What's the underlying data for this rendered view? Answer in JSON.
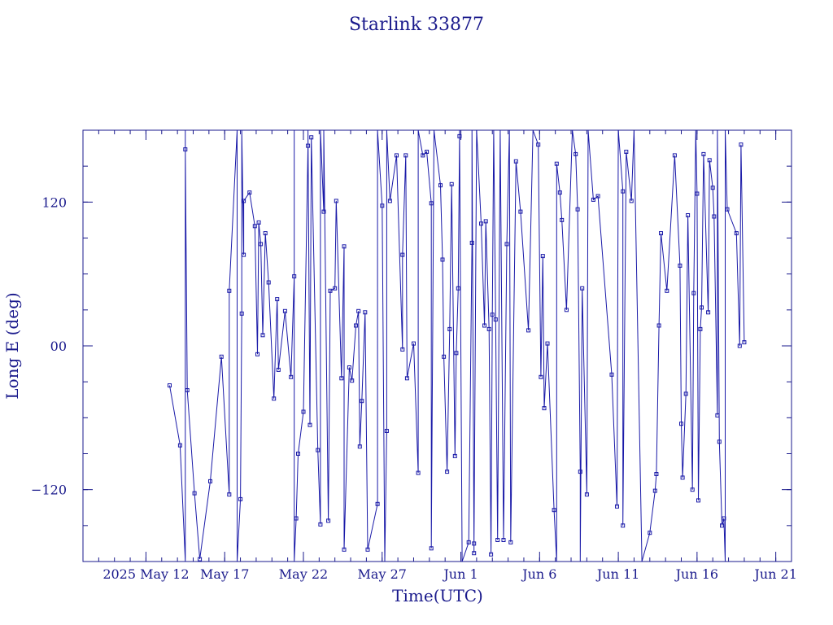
{
  "chart_data": {
    "type": "line",
    "title": "Starlink 33877",
    "xlabel": "Time(UTC)",
    "ylabel": "Long E (deg)",
    "x_ticks": [
      {
        "label": "2025 May 12",
        "date": "2025-05-12"
      },
      {
        "label": "May 17",
        "date": "2025-05-17"
      },
      {
        "label": "May 22",
        "date": "2025-05-22"
      },
      {
        "label": "May 27",
        "date": "2025-05-27"
      },
      {
        "label": "Jun 1",
        "date": "2025-06-01"
      },
      {
        "label": "Jun 6",
        "date": "2025-06-06"
      },
      {
        "label": "Jun 11",
        "date": "2025-06-11"
      },
      {
        "label": "Jun 16",
        "date": "2025-06-16"
      },
      {
        "label": "Jun 21",
        "date": "2025-06-21"
      }
    ],
    "y_ticks": [
      {
        "label": "−120",
        "value": -120
      },
      {
        "label": "00",
        "value": 0
      },
      {
        "label": "120",
        "value": 120
      }
    ],
    "xlim": [
      "2025-05-08",
      "2025-06-22"
    ],
    "ylim": [
      -180,
      180
    ],
    "grid": false,
    "color": "#1a1aa8",
    "series": [
      {
        "points": [
          {
            "x": "2025-05-13 12:00",
            "y": -33
          },
          {
            "x": "2025-05-14 04:00",
            "y": -83
          },
          {
            "x": "2025-05-14 12:00",
            "y": -180
          },
          {
            "x": "2025-05-14 12:00",
            "y": 180
          },
          {
            "x": "2025-05-14 12:00",
            "y": 164
          },
          {
            "x": "2025-05-14 15:00",
            "y": -37
          },
          {
            "x": "2025-05-15 02:00",
            "y": -123
          },
          {
            "x": "2025-05-15 10:00",
            "y": -178
          },
          {
            "x": "2025-05-16 02:00",
            "y": -113
          },
          {
            "x": "2025-05-16 19:00",
            "y": -9
          },
          {
            "x": "2025-05-17 07:00",
            "y": -124
          },
          {
            "x": "2025-05-17 07:00",
            "y": 46
          },
          {
            "x": "2025-05-17 19:00",
            "y": 180
          },
          {
            "x": "2025-05-17 19:00",
            "y": -180
          },
          {
            "x": "2025-05-18 00:00",
            "y": -128
          },
          {
            "x": "2025-05-18 02:00",
            "y": 27
          },
          {
            "x": "2025-05-18 02:00",
            "y": 180
          },
          {
            "x": "2025-05-18 05:00",
            "y": 76
          },
          {
            "x": "2025-05-18 05:00",
            "y": 121
          },
          {
            "x": "2025-05-18 14:00",
            "y": 128
          },
          {
            "x": "2025-05-18 22:00",
            "y": 100
          },
          {
            "x": "2025-05-19 02:00",
            "y": -7
          },
          {
            "x": "2025-05-19 04:00",
            "y": 103
          },
          {
            "x": "2025-05-19 07:00",
            "y": 85
          },
          {
            "x": "2025-05-19 10:00",
            "y": 9
          },
          {
            "x": "2025-05-19 14:00",
            "y": 94
          },
          {
            "x": "2025-05-19 19:00",
            "y": 53
          },
          {
            "x": "2025-05-20 03:00",
            "y": -44
          },
          {
            "x": "2025-05-20 08:00",
            "y": 39
          },
          {
            "x": "2025-05-20 10:00",
            "y": -20
          },
          {
            "x": "2025-05-20 20:00",
            "y": 29
          },
          {
            "x": "2025-05-21 05:00",
            "y": -26
          },
          {
            "x": "2025-05-21 10:00",
            "y": 58
          },
          {
            "x": "2025-05-21 10:00",
            "y": 180
          },
          {
            "x": "2025-05-21 10:00",
            "y": -180
          },
          {
            "x": "2025-05-21 13:00",
            "y": -144
          },
          {
            "x": "2025-05-21 16:00",
            "y": -90
          },
          {
            "x": "2025-05-22 00:00",
            "y": -55
          },
          {
            "x": "2025-05-22 07:00",
            "y": 167
          },
          {
            "x": "2025-05-22 07:00",
            "y": 180
          },
          {
            "x": "2025-05-22 10:00",
            "y": -66
          },
          {
            "x": "2025-05-22 12:00",
            "y": 174
          },
          {
            "x": "2025-05-22 22:00",
            "y": -87
          },
          {
            "x": "2025-05-23 02:00",
            "y": -149
          },
          {
            "x": "2025-05-23 02:00",
            "y": 180
          },
          {
            "x": "2025-05-23 07:00",
            "y": 112
          },
          {
            "x": "2025-05-23 07:00",
            "y": 180
          },
          {
            "x": "2025-05-23 14:00",
            "y": -146
          },
          {
            "x": "2025-05-23 17:00",
            "y": 46
          },
          {
            "x": "2025-05-24 00:00",
            "y": 48
          },
          {
            "x": "2025-05-24 02:00",
            "y": 121
          },
          {
            "x": "2025-05-24 10:00",
            "y": -27
          },
          {
            "x": "2025-05-24 14:00",
            "y": 83
          },
          {
            "x": "2025-05-24 14:00",
            "y": -170
          },
          {
            "x": "2025-05-24 22:00",
            "y": -18
          },
          {
            "x": "2025-05-25 02:00",
            "y": -29
          },
          {
            "x": "2025-05-25 08:00",
            "y": 17
          },
          {
            "x": "2025-05-25 12:00",
            "y": 29
          },
          {
            "x": "2025-05-25 14:00",
            "y": -84
          },
          {
            "x": "2025-05-25 17:00",
            "y": -46
          },
          {
            "x": "2025-05-25 22:00",
            "y": 28
          },
          {
            "x": "2025-05-26 02:00",
            "y": -170
          },
          {
            "x": "2025-05-26 17:00",
            "y": -132
          },
          {
            "x": "2025-05-26 17:00",
            "y": 180
          },
          {
            "x": "2025-05-27 00:00",
            "y": 117
          },
          {
            "x": "2025-05-27 04:00",
            "y": -180
          },
          {
            "x": "2025-05-27 07:00",
            "y": -71
          },
          {
            "x": "2025-05-27 07:00",
            "y": 180
          },
          {
            "x": "2025-05-27 12:00",
            "y": 121
          },
          {
            "x": "2025-05-27 22:00",
            "y": 159
          },
          {
            "x": "2025-05-28 07:00",
            "y": -3
          },
          {
            "x": "2025-05-28 07:00",
            "y": 76
          },
          {
            "x": "2025-05-28 12:00",
            "y": 159
          },
          {
            "x": "2025-05-28 14:00",
            "y": -27
          },
          {
            "x": "2025-05-29 00:00",
            "y": 2
          },
          {
            "x": "2025-05-29 07:00",
            "y": -106
          },
          {
            "x": "2025-05-29 07:00",
            "y": 180
          },
          {
            "x": "2025-05-29 14:00",
            "y": 159
          },
          {
            "x": "2025-05-29 20:00",
            "y": 162
          },
          {
            "x": "2025-05-30 03:00",
            "y": 119
          },
          {
            "x": "2025-05-30 03:00",
            "y": -169
          },
          {
            "x": "2025-05-30 07:00",
            "y": 180
          },
          {
            "x": "2025-05-30 17:00",
            "y": 134
          },
          {
            "x": "2025-05-30 20:00",
            "y": 72
          },
          {
            "x": "2025-05-30 22:00",
            "y": -9
          },
          {
            "x": "2025-05-31 03:00",
            "y": -105
          },
          {
            "x": "2025-05-31 07:00",
            "y": 14
          },
          {
            "x": "2025-05-31 10:00",
            "y": 135
          },
          {
            "x": "2025-05-31 15:00",
            "y": -92
          },
          {
            "x": "2025-05-31 17:00",
            "y": -6
          },
          {
            "x": "2025-05-31 20:00",
            "y": 48
          },
          {
            "x": "2025-05-31 22:00",
            "y": 175
          },
          {
            "x": "2025-05-31 22:00",
            "y": 180
          },
          {
            "x": "2025-06-01 02:00",
            "y": -180
          },
          {
            "x": "2025-06-01 12:00",
            "y": -164
          },
          {
            "x": "2025-06-01 17:00",
            "y": 86
          },
          {
            "x": "2025-06-01 17:00",
            "y": 180
          },
          {
            "x": "2025-06-01 20:00",
            "y": -173
          },
          {
            "x": "2025-06-01 20:00",
            "y": -165
          },
          {
            "x": "2025-06-02 00:00",
            "y": 180
          },
          {
            "x": "2025-06-02 07:00",
            "y": 102
          },
          {
            "x": "2025-06-02 12:00",
            "y": 17
          },
          {
            "x": "2025-06-02 14:00",
            "y": 104
          },
          {
            "x": "2025-06-02 19:00",
            "y": 14
          },
          {
            "x": "2025-06-02 22:00",
            "y": -174
          },
          {
            "x": "2025-06-03 00:00",
            "y": 26
          },
          {
            "x": "2025-06-03 02:00",
            "y": 180
          },
          {
            "x": "2025-06-03 05:00",
            "y": 22
          },
          {
            "x": "2025-06-03 08:00",
            "y": -162
          },
          {
            "x": "2025-06-03 12:00",
            "y": 180
          },
          {
            "x": "2025-06-03 17:00",
            "y": -162
          },
          {
            "x": "2025-06-03 22:00",
            "y": 85
          },
          {
            "x": "2025-06-04 02:00",
            "y": 180
          },
          {
            "x": "2025-06-04 04:00",
            "y": -164
          },
          {
            "x": "2025-06-04 12:00",
            "y": 154
          },
          {
            "x": "2025-06-04 19:00",
            "y": 112
          },
          {
            "x": "2025-06-05 07:00",
            "y": 13
          },
          {
            "x": "2025-06-05 14:00",
            "y": 180
          },
          {
            "x": "2025-06-05 22:00",
            "y": 168
          },
          {
            "x": "2025-06-06 02:00",
            "y": -26
          },
          {
            "x": "2025-06-06 05:00",
            "y": 75
          },
          {
            "x": "2025-06-06 07:00",
            "y": -52
          },
          {
            "x": "2025-06-06 12:00",
            "y": 2
          },
          {
            "x": "2025-06-06 22:00",
            "y": -137
          },
          {
            "x": "2025-06-07 02:00",
            "y": -180
          },
          {
            "x": "2025-06-07 02:00",
            "y": 152
          },
          {
            "x": "2025-06-07 07:00",
            "y": 128
          },
          {
            "x": "2025-06-07 10:00",
            "y": 105
          },
          {
            "x": "2025-06-07 17:00",
            "y": 30
          },
          {
            "x": "2025-06-08 02:00",
            "y": 180
          },
          {
            "x": "2025-06-08 07:00",
            "y": 160
          },
          {
            "x": "2025-06-08 10:00",
            "y": 114
          },
          {
            "x": "2025-06-08 14:00",
            "y": -105
          },
          {
            "x": "2025-06-08 14:00",
            "y": -180
          },
          {
            "x": "2025-06-08 17:00",
            "y": 48
          },
          {
            "x": "2025-06-09 00:00",
            "y": -124
          },
          {
            "x": "2025-06-09 02:00",
            "y": 180
          },
          {
            "x": "2025-06-09 10:00",
            "y": 122
          },
          {
            "x": "2025-06-09 17:00",
            "y": 125
          },
          {
            "x": "2025-06-10 14:00",
            "y": -24
          },
          {
            "x": "2025-06-10 22:00",
            "y": -134
          },
          {
            "x": "2025-06-11 00:00",
            "y": 180
          },
          {
            "x": "2025-06-11 07:00",
            "y": 129
          },
          {
            "x": "2025-06-11 07:00",
            "y": -150
          },
          {
            "x": "2025-06-11 12:00",
            "y": 162
          },
          {
            "x": "2025-06-11 20:00",
            "y": 121
          },
          {
            "x": "2025-06-12 00:00",
            "y": 180
          },
          {
            "x": "2025-06-12 12:00",
            "y": -180
          },
          {
            "x": "2025-06-13 00:00",
            "y": -156
          },
          {
            "x": "2025-06-13 08:00",
            "y": -121
          },
          {
            "x": "2025-06-13 10:00",
            "y": -107
          },
          {
            "x": "2025-06-13 14:00",
            "y": 17
          },
          {
            "x": "2025-06-13 17:00",
            "y": 94
          },
          {
            "x": "2025-06-14 02:00",
            "y": 46
          },
          {
            "x": "2025-06-14 14:00",
            "y": 159
          },
          {
            "x": "2025-06-14 22:00",
            "y": 67
          },
          {
            "x": "2025-06-15 00:00",
            "y": -65
          },
          {
            "x": "2025-06-15 02:00",
            "y": -110
          },
          {
            "x": "2025-06-15 07:00",
            "y": -40
          },
          {
            "x": "2025-06-15 10:00",
            "y": 109
          },
          {
            "x": "2025-06-15 17:00",
            "y": -120
          },
          {
            "x": "2025-06-15 19:00",
            "y": 44
          },
          {
            "x": "2025-06-15 22:00",
            "y": 180
          },
          {
            "x": "2025-06-16 00:00",
            "y": 127
          },
          {
            "x": "2025-06-16 02:00",
            "y": -129
          },
          {
            "x": "2025-06-16 05:00",
            "y": 14
          },
          {
            "x": "2025-06-16 07:00",
            "y": 32
          },
          {
            "x": "2025-06-16 10:00",
            "y": 160
          },
          {
            "x": "2025-06-16 17:00",
            "y": 28
          },
          {
            "x": "2025-06-16 19:00",
            "y": 155
          },
          {
            "x": "2025-06-17 00:00",
            "y": 132
          },
          {
            "x": "2025-06-17 02:00",
            "y": 108
          },
          {
            "x": "2025-06-17 07:00",
            "y": -58
          },
          {
            "x": "2025-06-17 07:00",
            "y": 180
          },
          {
            "x": "2025-06-17 10:00",
            "y": -80
          },
          {
            "x": "2025-06-17 14:00",
            "y": -150
          },
          {
            "x": "2025-06-17 17:00",
            "y": -144
          },
          {
            "x": "2025-06-17 19:00",
            "y": -180
          },
          {
            "x": "2025-06-17 19:00",
            "y": 180
          },
          {
            "x": "2025-06-17 22:00",
            "y": 114
          },
          {
            "x": "2025-06-18 12:00",
            "y": 94
          },
          {
            "x": "2025-06-18 17:00",
            "y": 0
          },
          {
            "x": "2025-06-18 19:00",
            "y": 168
          },
          {
            "x": "2025-06-19 00:00",
            "y": 3
          }
        ]
      }
    ]
  }
}
